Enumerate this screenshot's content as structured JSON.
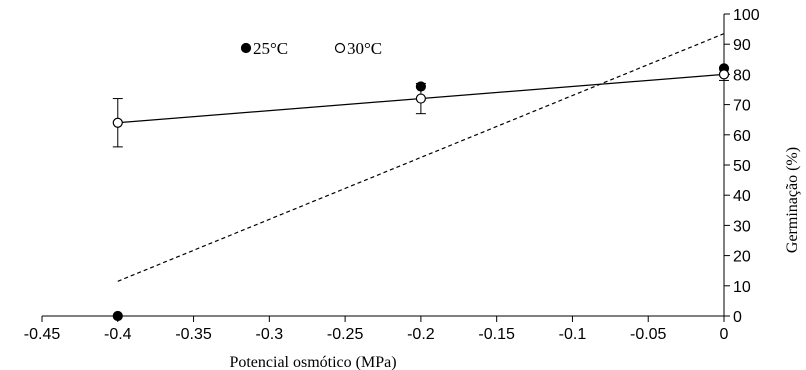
{
  "chart_data": {
    "type": "scatter",
    "title": "",
    "xlabel": "Potencial osmótico (MPa)",
    "ylabel": "Germinação (%)",
    "xlim": [
      -0.45,
      0
    ],
    "ylim": [
      0,
      100
    ],
    "x_ticks": [
      -0.45,
      -0.4,
      -0.35,
      -0.3,
      -0.25,
      -0.2,
      -0.15,
      -0.1,
      -0.05,
      0
    ],
    "x_tick_labels": [
      "-0.45",
      "-0.4",
      "-0.35",
      "-0.3",
      "-0.25",
      "-0.2",
      "-0.15",
      "-0.1",
      "-0.05",
      "0"
    ],
    "y_ticks": [
      0,
      10,
      20,
      30,
      40,
      50,
      60,
      70,
      80,
      90,
      100
    ],
    "y_tick_labels": [
      "0",
      "10",
      "20",
      "30",
      "40",
      "50",
      "60",
      "70",
      "80",
      "90",
      "100"
    ],
    "y_axis_position": "right",
    "grid": false,
    "legend_position": "top-left",
    "series": [
      {
        "name": "25°C",
        "marker": "filled-circle",
        "color": "#000000",
        "x": [
          -0.4,
          -0.2,
          0
        ],
        "y": [
          0,
          76,
          82
        ],
        "trendline": {
          "style": "dashed",
          "x": [
            -0.4,
            0
          ],
          "y": [
            11.5,
            93.5
          ]
        }
      },
      {
        "name": "30°C",
        "marker": "open-circle",
        "color": "#000000",
        "x": [
          -0.4,
          -0.2,
          0
        ],
        "y": [
          64,
          72,
          80
        ],
        "error": [
          8,
          5,
          2
        ],
        "trendline": {
          "style": "solid",
          "x": [
            -0.4,
            0
          ],
          "y": [
            64,
            80
          ]
        }
      }
    ]
  }
}
